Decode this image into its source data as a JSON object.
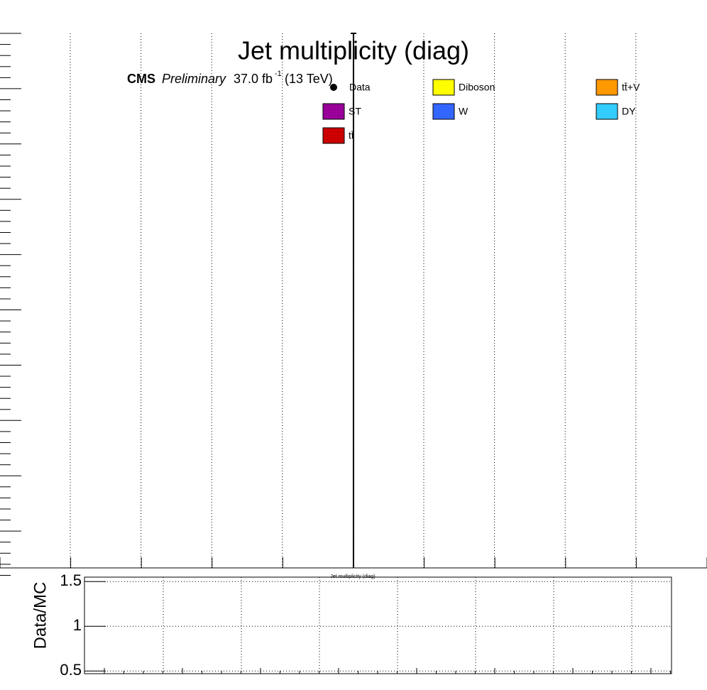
{
  "chart_data": {
    "type": "hist",
    "title": "Jet multiplicity (diag)",
    "experiment": "CMS",
    "status": "Preliminary",
    "luminosity": "37.0 fb",
    "luminosity_exponent": "-1",
    "energy": "(13 TeV)",
    "xlabel": "Jet multiplicity (diag)",
    "series": [
      {
        "name": "Data",
        "color": "#000000",
        "marker": "point"
      },
      {
        "name": "Diboson",
        "color": "#ffff00"
      },
      {
        "name": "tt̄+V",
        "color": "#ff9900"
      },
      {
        "name": "ST",
        "color": "#990099"
      },
      {
        "name": "W",
        "color": "#3366ff"
      },
      {
        "name": "DY",
        "color": "#33ccff"
      },
      {
        "name": "tt̄",
        "color": "#cc0000"
      }
    ],
    "ratio": {
      "ylabel": "Data/MC",
      "ylim": [
        0.47,
        1.55
      ],
      "yticks": [
        0.5,
        1,
        1.5
      ],
      "grid": true
    }
  }
}
